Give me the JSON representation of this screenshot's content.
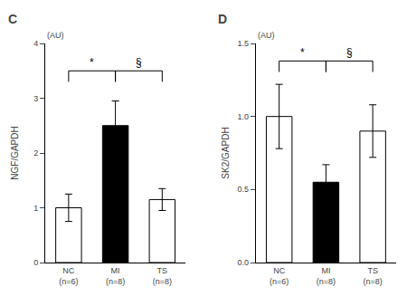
{
  "chart_data": [
    {
      "type": "bar",
      "title": "C",
      "subtitle": "(AU)",
      "categories": [
        "NC\n(n=6)",
        "MI\n(n=8)",
        "TS\n(n=8)"
      ],
      "values": [
        1.0,
        2.5,
        1.15
      ],
      "errors": [
        0.25,
        0.45,
        0.2
      ],
      "colors": [
        "white",
        "black",
        "white"
      ],
      "ylabel": "NGF/GAPDH",
      "ylim": [
        0,
        4
      ],
      "yticks": [
        0,
        1,
        2,
        3,
        4
      ],
      "grid": false,
      "annotations": [
        {
          "text": "*",
          "from": 0,
          "to": 1,
          "y": 3.5
        },
        {
          "text": "§",
          "from": 1,
          "to": 2,
          "y": 3.5
        }
      ]
    },
    {
      "type": "bar",
      "title": "D",
      "subtitle": "(AU)",
      "categories": [
        "NC\n(n=6)",
        "MI\n(n=8)",
        "TS\n(n=8)"
      ],
      "values": [
        1.0,
        0.55,
        0.9
      ],
      "errors": [
        0.22,
        0.12,
        0.18
      ],
      "colors": [
        "white",
        "black",
        "white"
      ],
      "ylabel": "SK2/GAPDH",
      "ylim": [
        0,
        1.5
      ],
      "yticks": [
        {
          "value": 0,
          "label": "0.0"
        },
        0.5,
        {
          "value": 1,
          "label": "1.0"
        },
        1.5
      ],
      "grid": false,
      "annotations": [
        {
          "text": "*",
          "from": 0,
          "to": 1,
          "y": 1.38
        },
        {
          "text": "§",
          "from": 1,
          "to": 2,
          "y": 1.38
        }
      ]
    }
  ]
}
